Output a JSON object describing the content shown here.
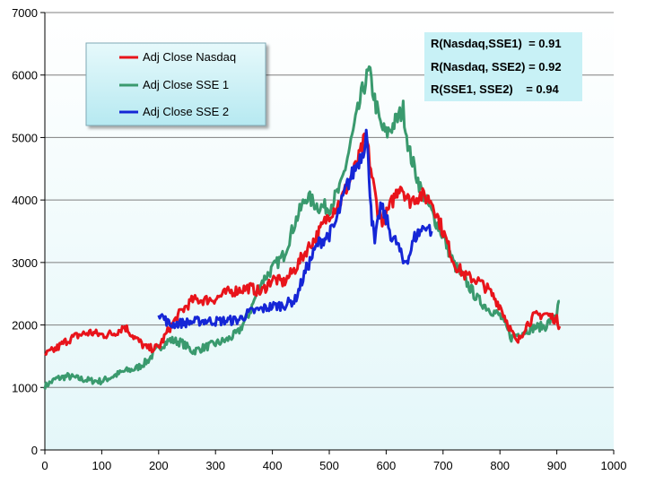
{
  "colors": {
    "nasdaq": "#e8141b",
    "sse1": "#3a9a6e",
    "sse2": "#1526d6",
    "plot_bg_top": "#ffffff",
    "plot_bg_bottom": "#e4f7f9",
    "legend_bg": "#c4eef4",
    "corr_bg": "#c8f1f6",
    "grid": "#7f7f7f"
  },
  "chart_data": {
    "type": "line",
    "title": "",
    "xlabel": "",
    "ylabel": "",
    "xlim": [
      0,
      1000
    ],
    "ylim": [
      0,
      7000
    ],
    "x_ticks": [
      "0",
      "100",
      "200",
      "300",
      "400",
      "500",
      "600",
      "700",
      "800",
      "900",
      "1000"
    ],
    "y_ticks": [
      "0",
      "1000",
      "2000",
      "3000",
      "4000",
      "5000",
      "6000",
      "7000"
    ],
    "grid": "horizontal",
    "legend": "top-left",
    "series": [
      {
        "name": "Adj Close Nasdaq",
        "x": [
          0,
          20,
          40,
          60,
          80,
          100,
          120,
          140,
          160,
          180,
          200,
          220,
          240,
          260,
          280,
          300,
          320,
          340,
          360,
          380,
          400,
          420,
          440,
          460,
          480,
          500,
          520,
          540,
          550,
          560,
          565,
          575,
          585,
          595,
          610,
          625,
          640,
          660,
          680,
          700,
          720,
          740,
          760,
          780,
          800,
          820,
          830,
          845,
          860,
          880,
          900,
          905
        ],
        "y": [
          1520,
          1620,
          1760,
          1840,
          1880,
          1840,
          1860,
          1980,
          1780,
          1620,
          1640,
          1960,
          2220,
          2400,
          2400,
          2420,
          2520,
          2560,
          2600,
          2520,
          2740,
          2680,
          2900,
          3200,
          3450,
          3780,
          3980,
          4400,
          4600,
          4900,
          5000,
          4380,
          3850,
          3650,
          3960,
          4260,
          3980,
          4080,
          3990,
          3500,
          2980,
          2780,
          2720,
          2560,
          2310,
          1900,
          1700,
          1980,
          2140,
          2180,
          2080,
          1980
        ]
      },
      {
        "name": "Adj Close SSE 1",
        "x": [
          0,
          20,
          40,
          60,
          80,
          100,
          120,
          140,
          160,
          180,
          200,
          220,
          240,
          260,
          280,
          300,
          320,
          340,
          360,
          380,
          400,
          420,
          440,
          460,
          480,
          500,
          520,
          540,
          550,
          560,
          570,
          580,
          590,
          600,
          620,
          630,
          640,
          660,
          680,
          700,
          720,
          740,
          760,
          780,
          800,
          820,
          840,
          860,
          880,
          900,
          905
        ],
        "y": [
          1020,
          1140,
          1180,
          1140,
          1110,
          1100,
          1180,
          1260,
          1300,
          1420,
          1640,
          1760,
          1720,
          1580,
          1640,
          1700,
          1760,
          1880,
          2200,
          2680,
          2900,
          3120,
          3650,
          4060,
          3900,
          3880,
          4200,
          5000,
          5400,
          5800,
          6050,
          5600,
          5200,
          5050,
          5300,
          5450,
          4800,
          4200,
          3800,
          3420,
          2960,
          2700,
          2420,
          2260,
          2150,
          1800,
          1890,
          1960,
          1980,
          2200,
          2380
        ]
      },
      {
        "name": "Adj Close SSE 2",
        "x": [
          200,
          210,
          220,
          230,
          240,
          260,
          280,
          300,
          320,
          340,
          360,
          380,
          400,
          420,
          440,
          460,
          480,
          500,
          510,
          520,
          530,
          540,
          550,
          560,
          565,
          570,
          575,
          580,
          590,
          600,
          610,
          620,
          630,
          640,
          650,
          660,
          670,
          680
        ],
        "y": [
          2200,
          2100,
          2000,
          2020,
          2030,
          2050,
          2070,
          2060,
          2070,
          2080,
          2200,
          2250,
          2300,
          2320,
          2400,
          2900,
          3300,
          3450,
          3600,
          3900,
          4200,
          4400,
          4600,
          4800,
          5100,
          4400,
          3700,
          3300,
          3900,
          3700,
          3400,
          3300,
          3000,
          3100,
          3400,
          3500,
          3600,
          3500
        ]
      }
    ]
  },
  "legend": {
    "items": [
      "Adj Close Nasdaq",
      "Adj Close SSE 1",
      "Adj Close SSE 2"
    ]
  },
  "correlations": {
    "r1": "R(Nasdaq,SSE1)  = 0.91",
    "r2": "R(Nasdaq, SSE2) = 0.92",
    "r3": "R(SSE1, SSE2)    = 0.94"
  }
}
